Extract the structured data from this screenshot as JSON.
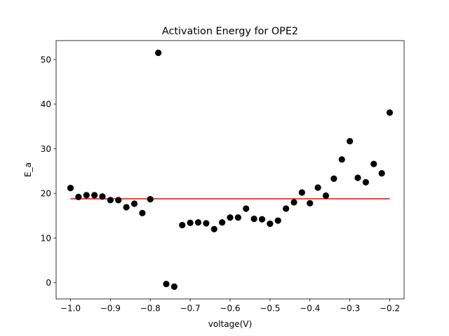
{
  "chart_data": {
    "type": "scatter",
    "title": "Activation Energy for OPE2",
    "xlabel": "voltage(V)",
    "ylabel": "E_a",
    "xlim": [
      -1.036,
      -0.164
    ],
    "ylim": [
      -3.64,
      54.24
    ],
    "x_ticks": [
      -1.0,
      -0.9,
      -0.8,
      -0.7,
      -0.6,
      -0.5,
      -0.4,
      -0.3,
      -0.2
    ],
    "x_tick_labels": [
      "−1.0",
      "−0.9",
      "−0.8",
      "−0.7",
      "−0.6",
      "−0.5",
      "−0.4",
      "−0.3",
      "−0.2"
    ],
    "y_ticks": [
      0,
      10,
      20,
      30,
      40,
      50
    ],
    "y_tick_labels": [
      "0",
      "10",
      "20",
      "30",
      "40",
      "50"
    ],
    "grid": false,
    "series": [
      {
        "kind": "scatter",
        "color": "#000000",
        "points": [
          [
            -1.0,
            21.2
          ],
          [
            -0.98,
            19.2
          ],
          [
            -0.96,
            19.6
          ],
          [
            -0.94,
            19.6
          ],
          [
            -0.92,
            19.3
          ],
          [
            -0.9,
            18.5
          ],
          [
            -0.88,
            18.5
          ],
          [
            -0.86,
            16.9
          ],
          [
            -0.84,
            17.7
          ],
          [
            -0.82,
            15.6
          ],
          [
            -0.8,
            18.7
          ],
          [
            -0.78,
            51.5
          ],
          [
            -0.76,
            -0.3
          ],
          [
            -0.74,
            -0.9
          ],
          [
            -0.72,
            12.9
          ],
          [
            -0.7,
            13.4
          ],
          [
            -0.68,
            13.5
          ],
          [
            -0.66,
            13.3
          ],
          [
            -0.64,
            12.0
          ],
          [
            -0.62,
            13.5
          ],
          [
            -0.6,
            14.6
          ],
          [
            -0.58,
            14.6
          ],
          [
            -0.56,
            16.6
          ],
          [
            -0.54,
            14.3
          ],
          [
            -0.52,
            14.2
          ],
          [
            -0.5,
            13.2
          ],
          [
            -0.48,
            13.9
          ],
          [
            -0.46,
            16.6
          ],
          [
            -0.44,
            18.0
          ],
          [
            -0.42,
            20.2
          ],
          [
            -0.4,
            17.8
          ],
          [
            -0.38,
            21.3
          ],
          [
            -0.36,
            19.5
          ],
          [
            -0.34,
            23.3
          ],
          [
            -0.32,
            27.6
          ],
          [
            -0.3,
            31.7
          ],
          [
            -0.28,
            23.5
          ],
          [
            -0.26,
            22.5
          ],
          [
            -0.24,
            26.6
          ],
          [
            -0.22,
            24.5
          ],
          [
            -0.2,
            38.1
          ]
        ]
      },
      {
        "kind": "line",
        "color": "#ff0000",
        "x": [
          -1.0,
          -0.2
        ],
        "y": [
          18.8,
          18.8
        ]
      }
    ]
  }
}
